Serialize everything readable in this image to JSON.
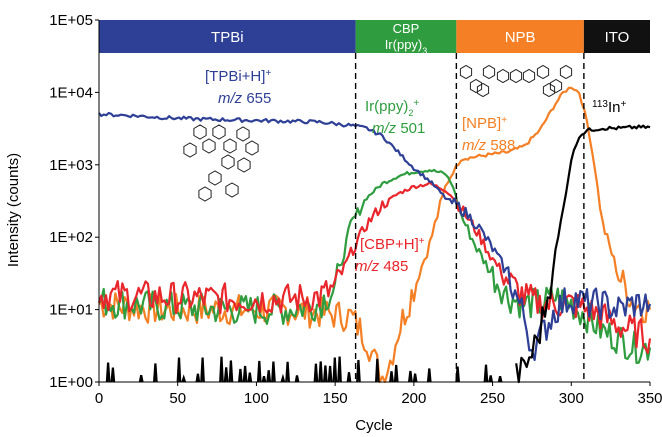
{
  "chart_data": {
    "type": "line",
    "xlabel": "Cycle",
    "ylabel": "Intensity (counts)",
    "xlim": [
      0,
      350
    ],
    "ylim": [
      1,
      100000
    ],
    "yscale": "log",
    "x_ticks": [
      "0",
      "50",
      "100",
      "150",
      "200",
      "250",
      "300",
      "350"
    ],
    "y_ticks": [
      "1E+00",
      "1E+01",
      "1E+02",
      "1E+03",
      "1E+04",
      "1E+05"
    ],
    "layers": [
      {
        "label": "TPBi",
        "sub": "",
        "x_start": 0,
        "x_end": 163,
        "color": "#2e3f96"
      },
      {
        "label": "CBP",
        "sub": "Ir(ppy)3",
        "x_start": 163,
        "x_end": 227,
        "color": "#2f9d3f"
      },
      {
        "label": "NPB",
        "sub": "",
        "x_start": 227,
        "x_end": 308,
        "color": "#f47f24"
      },
      {
        "label": "ITO",
        "sub": "",
        "x_start": 308,
        "x_end": 350,
        "color": "#111111"
      }
    ],
    "boundaries": [
      163,
      227,
      308
    ],
    "annotations": [
      {
        "id": "tpbi",
        "line1": "[TPBi+H]+",
        "line2": "m/z 655",
        "color": "#2e3f96"
      },
      {
        "id": "irppy",
        "line1": "Ir(ppy)2+",
        "line2": "m/z 501",
        "color": "#2f9d3f"
      },
      {
        "id": "npb",
        "line1": "[NPB]+",
        "line2": "m/z 588",
        "color": "#f47f24"
      },
      {
        "id": "cbp",
        "line1": "[CBP+H]+",
        "line2": "m/z 485",
        "color": "#e8262b"
      },
      {
        "id": "in",
        "line1": "113In+",
        "line2": "",
        "color": "#000000"
      }
    ],
    "series": [
      {
        "name": "[TPBi+H]+ m/z 655",
        "color": "#2e3f96",
        "x": [
          0,
          20,
          40,
          60,
          80,
          100,
          120,
          140,
          160,
          170,
          180,
          190,
          200,
          210,
          220,
          230,
          240,
          250,
          260,
          270,
          275,
          280,
          290,
          300,
          310,
          320,
          330,
          340,
          350
        ],
        "y": [
          5000,
          4800,
          4500,
          4300,
          4200,
          4100,
          4000,
          3900,
          3500,
          3200,
          2500,
          1500,
          900,
          600,
          350,
          250,
          150,
          70,
          30,
          8,
          3,
          4,
          10,
          15,
          12,
          12,
          10,
          12,
          12
        ]
      },
      {
        "name": "Ir(ppy)2+ m/z 501",
        "color": "#2f9d3f",
        "x": [
          0,
          40,
          80,
          120,
          140,
          150,
          160,
          170,
          180,
          190,
          200,
          210,
          220,
          225,
          230,
          240,
          250,
          260,
          270,
          280,
          290,
          300,
          310,
          320,
          330,
          340,
          350
        ],
        "y": [
          13,
          11,
          10,
          10,
          12,
          20,
          150,
          350,
          550,
          700,
          800,
          850,
          750,
          500,
          200,
          70,
          30,
          15,
          12,
          12,
          15,
          12,
          8,
          5,
          4,
          3,
          3
        ]
      },
      {
        "name": "[CBP+H]+ m/z 485",
        "color": "#e8262b",
        "x": [
          0,
          40,
          80,
          120,
          140,
          150,
          160,
          170,
          180,
          190,
          200,
          210,
          220,
          225,
          230,
          240,
          250,
          260,
          270,
          280,
          290,
          300,
          310,
          320,
          330,
          340,
          350
        ],
        "y": [
          16,
          15,
          14,
          14,
          15,
          20,
          60,
          150,
          280,
          400,
          500,
          550,
          450,
          350,
          250,
          120,
          50,
          25,
          15,
          12,
          12,
          12,
          10,
          8,
          6,
          5,
          4
        ]
      },
      {
        "name": "[NPB]+ m/z 588",
        "color": "#f47f24",
        "x": [
          0,
          40,
          80,
          120,
          140,
          160,
          170,
          175,
          180,
          185,
          190,
          200,
          205,
          210,
          215,
          220,
          225,
          230,
          240,
          250,
          260,
          270,
          280,
          290,
          295,
          300,
          305,
          310,
          315,
          320,
          330,
          340,
          350
        ],
        "y": [
          12,
          10,
          10,
          10,
          9,
          8,
          4,
          2,
          1.2,
          2,
          5,
          20,
          40,
          80,
          200,
          500,
          800,
          1200,
          1300,
          1400,
          1500,
          1800,
          3000,
          7000,
          10000,
          12000,
          10000,
          4000,
          900,
          150,
          30,
          12,
          10
        ]
      },
      {
        "name": "113In+",
        "color": "#000000",
        "x": [
          265,
          270,
          275,
          280,
          285,
          290,
          295,
          300,
          305,
          310,
          320,
          330,
          340,
          350
        ],
        "y": [
          1.2,
          1.5,
          2.5,
          5,
          15,
          60,
          250,
          1200,
          2500,
          3000,
          3200,
          3200,
          3300,
          3300
        ]
      }
    ]
  }
}
